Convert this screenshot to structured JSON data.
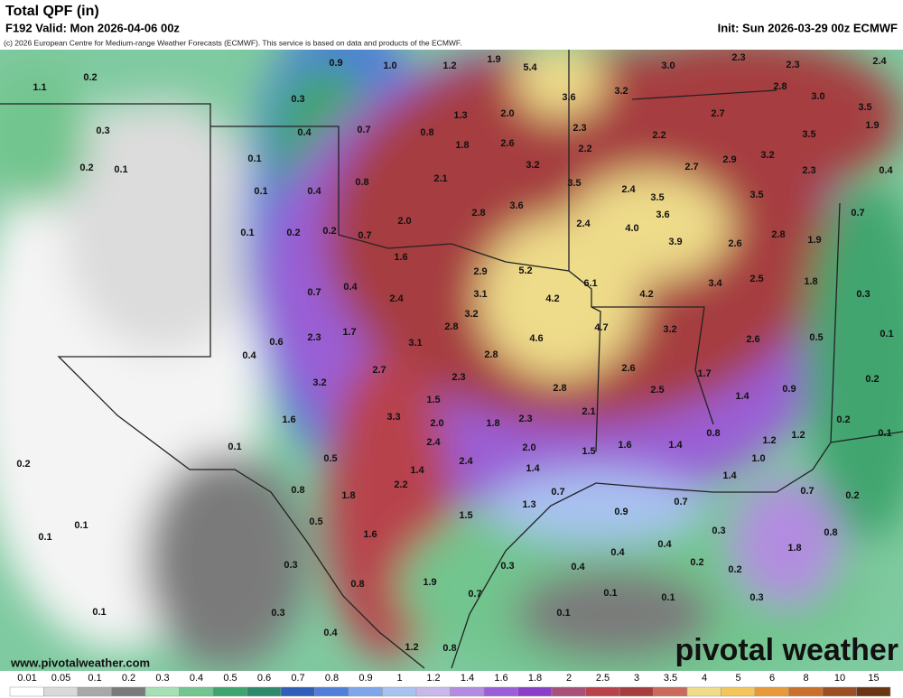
{
  "header": {
    "title": "Total QPF (in)",
    "valid": "F192 Valid: Mon 2026-04-06 00z",
    "init": "Init: Sun 2026-03-29 00z ECMWF",
    "copyright": "(c) 2026 European Centre for Medium-range Weather Forecasts (ECMWF). This service is based on data and products of the ECMWF."
  },
  "map": {
    "labels": [
      "1.1",
      "0.2",
      "0.9",
      "1.0",
      "1.2",
      "1.9",
      "5.4",
      "3.6",
      "3.2",
      "3.0",
      "2.3",
      "2.3",
      "2.4",
      "2.8",
      "3.0",
      "3.5",
      "1.9",
      "0.3",
      "0.3",
      "1.3",
      "2.0",
      "0.4",
      "0.7",
      "0.8",
      "1.8",
      "2.6",
      "2.3",
      "2.2",
      "2.2",
      "2.7",
      "3.5",
      "0.2",
      "0.1",
      "0.1",
      "3.2",
      "2.7",
      "2.9",
      "3.2",
      "2.3",
      "0.4",
      "0.1",
      "0.4",
      "0.8",
      "2.1",
      "3.5",
      "2.4",
      "3.5",
      "3.5",
      "0.1",
      "0.2",
      "0.2",
      "0.7",
      "2.0",
      "2.8",
      "3.6",
      "2.4",
      "4.0",
      "3.6",
      "3.9",
      "2.6",
      "2.8",
      "1.9",
      "0.7",
      "1.6",
      "2.9",
      "5.2",
      "6.1",
      "1.8",
      "2.5",
      "3.4",
      "4.2",
      "0.7",
      "0.4",
      "2.4",
      "3.1",
      "4.2",
      "0.3",
      "3.2",
      "0.6",
      "2.3",
      "1.7",
      "2.8",
      "4.7",
      "3.2",
      "0.4",
      "3.1",
      "4.6",
      "2.6",
      "0.5",
      "0.1",
      "2.7",
      "2.8",
      "3.2",
      "2.3",
      "2.6",
      "1.7",
      "0.2",
      "2.8",
      "2.5",
      "1.5",
      "1.4",
      "0.9",
      "1.6",
      "3.3",
      "2.0",
      "1.8",
      "2.3",
      "2.1",
      "0.2",
      "0.1",
      "0.1",
      "2.4",
      "2.0",
      "1.5",
      "1.6",
      "1.4",
      "0.8",
      "1.2",
      "1.2",
      "0.2",
      "0.5",
      "2.4",
      "1.4",
      "1.4",
      "1.0",
      "0.8",
      "2.2",
      "0.7",
      "1.8",
      "1.4",
      "0.7",
      "0.2",
      "0.7",
      "1.3",
      "0.1",
      "0.1",
      "0.5",
      "1.5",
      "0.9",
      "1.6",
      "0.3",
      "0.8",
      "0.4",
      "0.4",
      "1.8",
      "0.3",
      "0.3",
      "0.4",
      "0.2",
      "0.2",
      "1.9",
      "0.8",
      "0.7",
      "0.1",
      "0.1",
      "0.3",
      "0.1",
      "0.3",
      "0.1",
      "0.4",
      "1.2",
      "0.8"
    ],
    "website": "www.pivotalweather.com",
    "brand": "pivotal weather"
  },
  "colorbar": {
    "labels": [
      "0.01",
      "0.05",
      "0.1",
      "0.2",
      "0.3",
      "0.4",
      "0.5",
      "0.6",
      "0.7",
      "0.8",
      "0.9",
      "1",
      "1.2",
      "1.4",
      "1.6",
      "1.8",
      "2",
      "2.5",
      "3",
      "3.5",
      "4",
      "5",
      "6",
      "8",
      "10",
      "15"
    ],
    "colors": [
      "#ffffff",
      "#d9d9d9",
      "#a8a8a8",
      "#7a7a7a",
      "#a7e0b5",
      "#72c58e",
      "#3fa56e",
      "#2e8a6a",
      "#2f5fb9",
      "#4f7fd9",
      "#7fa5ea",
      "#a9c3f1",
      "#c9b9ea",
      "#b28ce0",
      "#9a5fd6",
      "#8a3fc8",
      "#a84f7a",
      "#b8434b",
      "#a63d3f",
      "#c96b5b",
      "#eedc8a",
      "#f2c65a",
      "#e89a3a",
      "#c9702c",
      "#9a5024",
      "#6a3512"
    ]
  }
}
